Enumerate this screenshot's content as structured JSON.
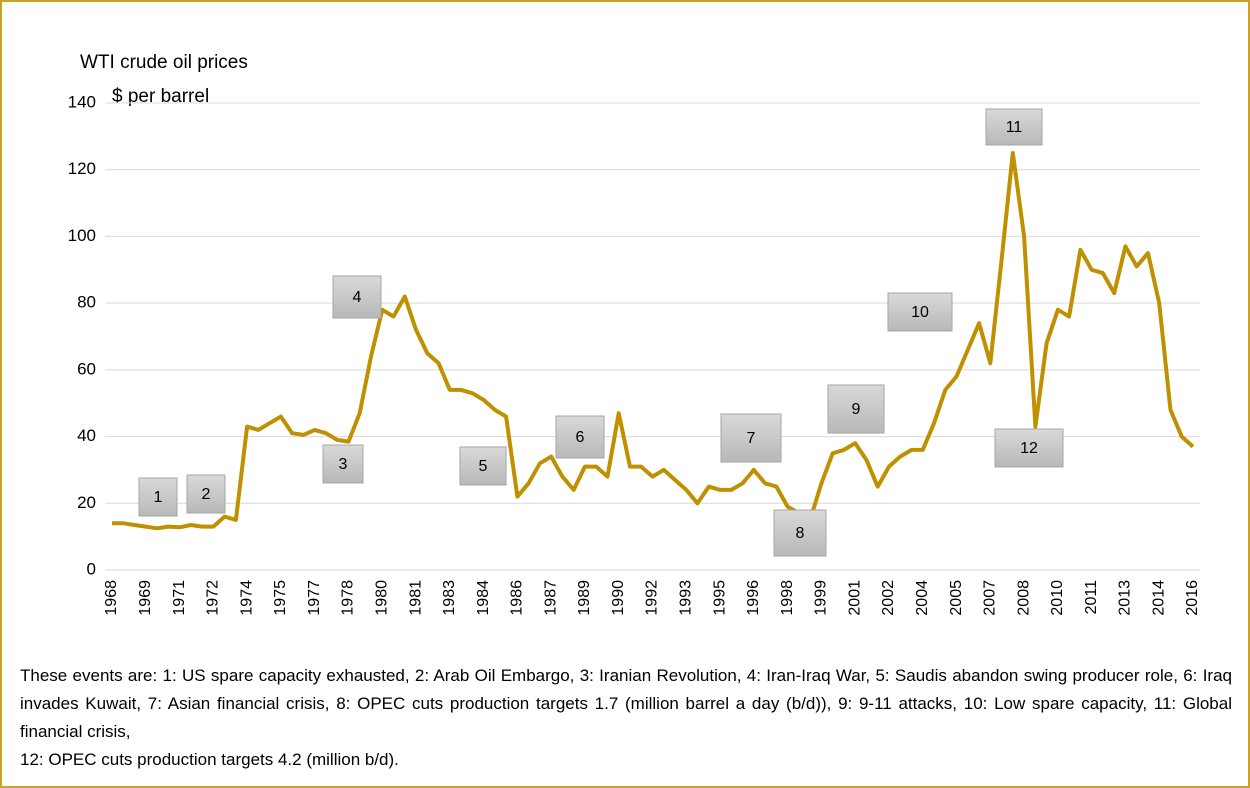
{
  "chart_data": {
    "type": "line",
    "title": "WTI crude oil prices",
    "subtitle": "$ per barrel",
    "categories": [
      "1968",
      null,
      null,
      "1969",
      null,
      null,
      "1971",
      null,
      null,
      "1972",
      null,
      null,
      "1974",
      null,
      null,
      "1975",
      null,
      null,
      "1977",
      null,
      null,
      "1978",
      null,
      null,
      "1980",
      null,
      null,
      "1981",
      null,
      null,
      "1983",
      null,
      null,
      "1984",
      null,
      null,
      "1986",
      null,
      null,
      "1987",
      null,
      null,
      "1989",
      null,
      null,
      "1990",
      null,
      null,
      "1992",
      null,
      null,
      "1993",
      null,
      null,
      "1995",
      null,
      null,
      "1996",
      null,
      null,
      "1998",
      null,
      null,
      "1999",
      null,
      null,
      "2001",
      null,
      null,
      "2002",
      null,
      null,
      "2004",
      null,
      null,
      "2005",
      null,
      null,
      "2007",
      null,
      null,
      "2008",
      null,
      null,
      "2010",
      null,
      null,
      "2011",
      null,
      null,
      "2013",
      null,
      null,
      "2014",
      null,
      null,
      "2016"
    ],
    "series": [
      {
        "name": "WTI crude oil prices",
        "color": "#bf9000",
        "values": [
          14,
          14,
          13.5,
          13,
          12.5,
          13,
          12.8,
          13.5,
          13,
          13,
          16,
          15,
          43,
          42,
          44,
          46,
          41,
          40.5,
          42,
          41,
          39,
          38.5,
          47,
          64,
          78,
          76,
          82,
          72,
          65,
          62,
          54,
          54,
          53,
          51,
          48,
          46,
          22,
          26,
          32,
          34,
          28,
          24,
          31,
          31,
          28,
          47,
          31,
          31,
          28,
          30,
          27,
          24,
          20,
          25,
          24,
          24,
          26,
          30,
          26,
          25,
          19,
          17,
          15,
          26,
          35,
          36,
          38,
          33,
          25,
          31,
          34,
          36,
          36,
          44,
          54,
          58,
          66,
          74,
          62,
          93,
          125,
          100,
          43,
          68,
          78,
          76,
          96,
          90,
          89,
          83,
          97,
          91,
          95,
          80,
          48,
          40,
          37
        ]
      }
    ],
    "ylim": [
      0,
      140
    ],
    "yticks": [
      0,
      20,
      40,
      60,
      80,
      100,
      120,
      140
    ],
    "grid": true,
    "annotations": [
      "1",
      "2",
      "3",
      "4",
      "5",
      "6",
      "7",
      "8",
      "9",
      "10",
      "11",
      "12"
    ],
    "footnote": [
      "These events are: 1: US spare capacity exhausted, 2: Arab Oil Embargo, 3: Iranian Revolution, 4: Iran-Iraq War, 5: Saudis abandon swing producer role, 6: Iraq invades Kuwait, 7: Asian financial crisis, 8: OPEC cuts production targets 1.7 (million barrel a day (b/d)), 9: 9-11 attacks, 10: Low spare capacity, 11: Global financial crisis,",
      "12: OPEC cuts production targets 4.2 (million b/d)."
    ]
  }
}
